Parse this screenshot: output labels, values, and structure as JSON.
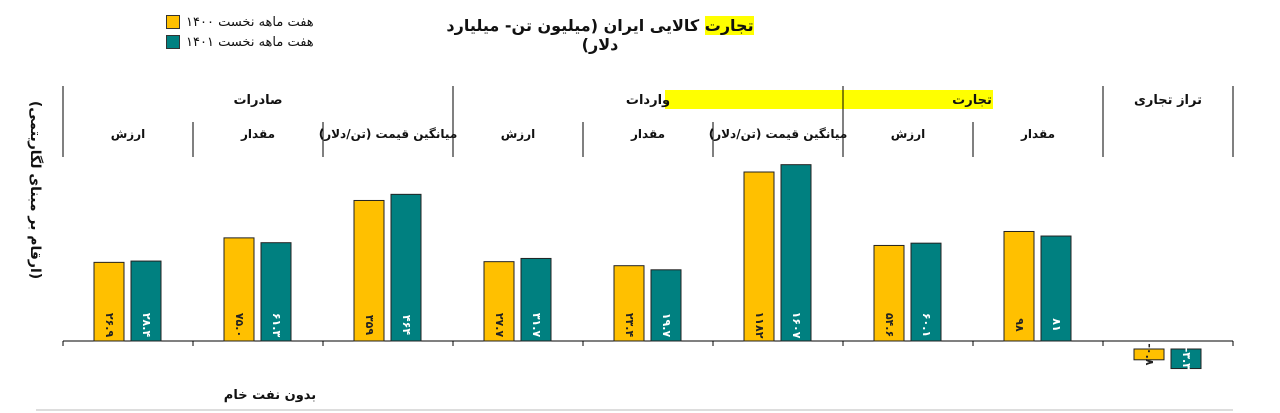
{
  "title": {
    "highlight": "تجارت",
    "rest": " کالایی ایران (میلیون تن- میلیارد دلار)"
  },
  "legend": [
    {
      "label": "هفت ماهه نخست ۱۴۰۰",
      "color": "#FFC000"
    },
    {
      "label": "هفت ماهه نخست ۱۴۰۱",
      "color": "#008080"
    }
  ],
  "y_axis_label": "(ارقام بر مبنای لگاریتمی)",
  "footnote": "بدون نفت خام",
  "chart_data": {
    "type": "bar",
    "groups": [
      {
        "label": "صادرات",
        "highlight": false,
        "categories": [
          0,
          1,
          2
        ]
      },
      {
        "label": "واردات",
        "highlight": true,
        "categories": [
          3,
          4,
          5
        ]
      },
      {
        "label": "تجارت",
        "highlight": true,
        "categories": [
          6,
          7
        ]
      },
      {
        "label": "تراز تجاری",
        "highlight": false,
        "categories": [
          8
        ]
      }
    ],
    "categories": [
      "ارزش",
      "مقدار",
      "میانگین قیمت (تن/دلار)",
      "ارزش",
      "مقدار",
      "میانگین قیمت (تن/دلار)",
      "ارزش",
      "مقدار",
      ""
    ],
    "series": [
      {
        "name": "هفت ماهه نخست ۱۴۰۰",
        "color": "#FFC000",
        "values": [
          26.9,
          75.0,
          359,
          27.7,
          23.4,
          1182,
          54.6,
          98,
          -0.8
        ],
        "labels": [
          "۲۶.۹",
          "۷۵.۰",
          "۳۵۹",
          "۲۷.۷",
          "۲۳.۴",
          "۱۱۸۲",
          "۵۴.۶",
          "۹۸",
          "-۰.۸"
        ]
      },
      {
        "name": "هفت ماهه نخست ۱۴۰۱",
        "color": "#008080",
        "values": [
          28.4,
          61.3,
          464,
          31.7,
          19.7,
          1607,
          60.1,
          81,
          -3.3
        ],
        "labels": [
          "۲۸.۴",
          "۶۱.۳",
          "۴۶۴",
          "۳۱.۷",
          "۱۹.۷",
          "۱۶۰۷",
          "۶۰.۱",
          "۸۱",
          "-۳.۳"
        ]
      }
    ],
    "y_scale": "log",
    "grid": false,
    "legend_position": "top-left"
  }
}
